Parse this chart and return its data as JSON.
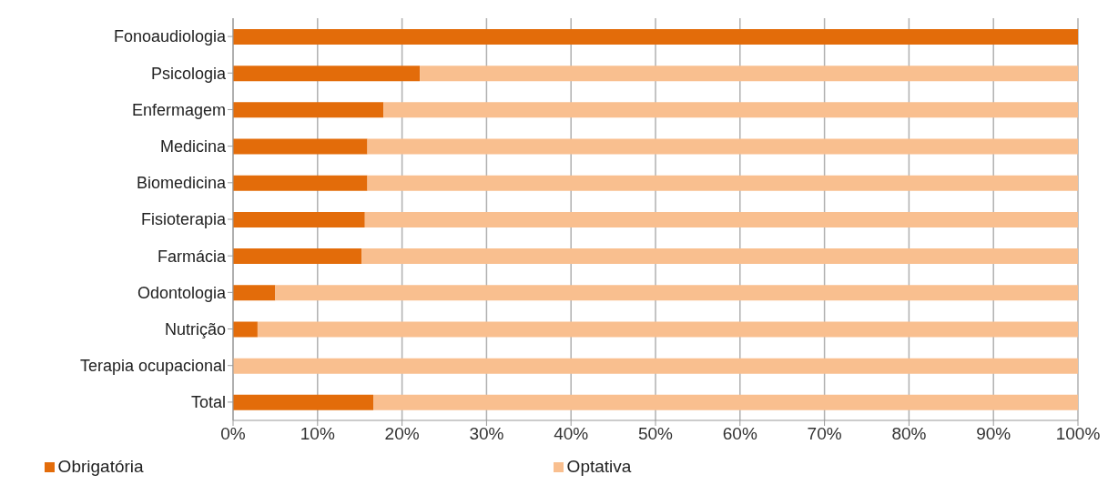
{
  "chart_data": {
    "type": "bar",
    "orientation": "horizontal",
    "stacked": true,
    "categories": [
      "Fonoaudiologia",
      "Psicologia",
      "Enfermagem",
      "Medicina",
      "Biomedicina",
      "Fisioterapia",
      "Farmácia",
      "Odontologia",
      "Nutrição",
      "Terapia ocupacional",
      "Total"
    ],
    "series": [
      {
        "name": "Obrigatória",
        "color": "#e36c0a",
        "values": [
          100,
          22.1,
          17.8,
          15.9,
          15.9,
          15.6,
          15.2,
          5,
          2.9,
          0,
          16.6
        ]
      },
      {
        "name": "Optativa",
        "color": "#f9bf8f",
        "values": [
          0,
          77.9,
          82.2,
          84.1,
          84.1,
          84.4,
          84.8,
          95,
          97.1,
          100,
          83.4
        ]
      }
    ],
    "xlim": [
      0,
      100
    ],
    "xticks": [
      {
        "value": 0,
        "label": "0%"
      },
      {
        "value": 10,
        "label": "10%"
      },
      {
        "value": 20,
        "label": "20%"
      },
      {
        "value": 30,
        "label": "30%"
      },
      {
        "value": 40,
        "label": "40%"
      },
      {
        "value": 50,
        "label": "50%"
      },
      {
        "value": 60,
        "label": "60%"
      },
      {
        "value": 70,
        "label": "70%"
      },
      {
        "value": 80,
        "label": "80%"
      },
      {
        "value": 90,
        "label": "90%"
      },
      {
        "value": 100,
        "label": "100%"
      }
    ],
    "grid": "x",
    "legend": "bottom"
  }
}
